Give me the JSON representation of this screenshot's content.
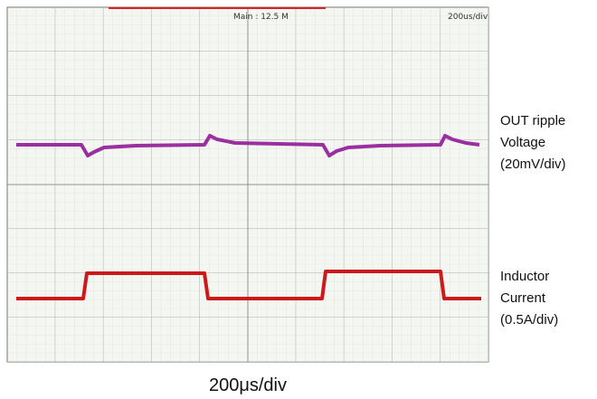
{
  "screen": {
    "header": "Main : 12.5 M",
    "scale": "200us/div"
  },
  "labels": [
    {
      "lines": [
        "OUT ripple",
        "Voltage",
        "(20mV/div)"
      ]
    },
    {
      "lines": [
        "Inductor",
        "Current",
        "(0.5A/div)"
      ]
    }
  ],
  "footer": "200μs/div"
}
